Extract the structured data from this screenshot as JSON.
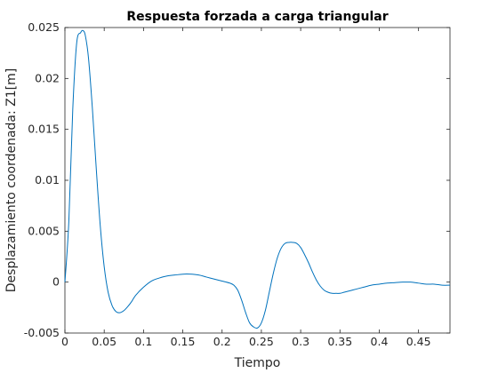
{
  "chart_data": {
    "type": "line",
    "title": "Respuesta forzada a carga triangular",
    "xlabel": "Tiempo",
    "ylabel": "Desplazamiento coordenada: Z1[m]",
    "xlim": [
      0,
      0.49
    ],
    "ylim": [
      -0.005,
      0.025
    ],
    "grid": false,
    "xticks": [
      0,
      0.05,
      0.1,
      0.15,
      0.2,
      0.25,
      0.3,
      0.35,
      0.4,
      0.45
    ],
    "xtick_labels": [
      "0",
      "0.05",
      "0.1",
      "0.15",
      "0.2",
      "0.25",
      "0.3",
      "0.35",
      "0.4",
      "0.45"
    ],
    "yticks": [
      -0.005,
      0,
      0.005,
      0.01,
      0.015,
      0.02,
      0.025
    ],
    "ytick_labels": [
      "-0.005",
      "0",
      "0.005",
      "0.01",
      "0.015",
      "0.02",
      "0.025"
    ],
    "series": [
      {
        "color": "#0072BD",
        "x": [
          0,
          0.005,
          0.01,
          0.015,
          0.02,
          0.023,
          0.026,
          0.03,
          0.035,
          0.04,
          0.045,
          0.05,
          0.055,
          0.06,
          0.065,
          0.07,
          0.075,
          0.08,
          0.085,
          0.09,
          0.1,
          0.11,
          0.12,
          0.13,
          0.14,
          0.155,
          0.17,
          0.18,
          0.19,
          0.2,
          0.21,
          0.215,
          0.22,
          0.225,
          0.23,
          0.235,
          0.24,
          0.245,
          0.25,
          0.255,
          0.26,
          0.265,
          0.27,
          0.275,
          0.28,
          0.285,
          0.29,
          0.295,
          0.3,
          0.305,
          0.31,
          0.315,
          0.32,
          0.325,
          0.33,
          0.335,
          0.34,
          0.345,
          0.35,
          0.355,
          0.36,
          0.365,
          0.37,
          0.38,
          0.39,
          0.4,
          0.41,
          0.42,
          0.43,
          0.44,
          0.45,
          0.46,
          0.47,
          0.48,
          0.49
        ],
        "y": [
          0,
          0.006,
          0.017,
          0.0235,
          0.0245,
          0.0247,
          0.0242,
          0.022,
          0.017,
          0.011,
          0.0055,
          0.0015,
          -0.001,
          -0.0023,
          -0.0029,
          -0.003,
          -0.0028,
          -0.0024,
          -0.0019,
          -0.0013,
          -0.0005,
          0.0001,
          0.0004,
          0.0006,
          0.0007,
          0.0008,
          0.0007,
          0.0005,
          0.0003,
          0.0001,
          -0.0001,
          -0.0003,
          -0.0008,
          -0.0018,
          -0.003,
          -0.004,
          -0.0044,
          -0.0045,
          -0.004,
          -0.0028,
          -0.001,
          0.0008,
          0.0023,
          0.0033,
          0.0038,
          0.0039,
          0.0039,
          0.0038,
          0.0034,
          0.0027,
          0.0019,
          0.001,
          0.0002,
          -0.0004,
          -0.0008,
          -0.001,
          -0.0011,
          -0.0011,
          -0.0011,
          -0.001,
          -0.0009,
          -0.0008,
          -0.0007,
          -0.0005,
          -0.0003,
          -0.0002,
          -0.0001,
          -5e-05,
          0,
          0,
          -0.0001,
          -0.0002,
          -0.0002,
          -0.0003,
          -0.0003
        ]
      }
    ]
  }
}
